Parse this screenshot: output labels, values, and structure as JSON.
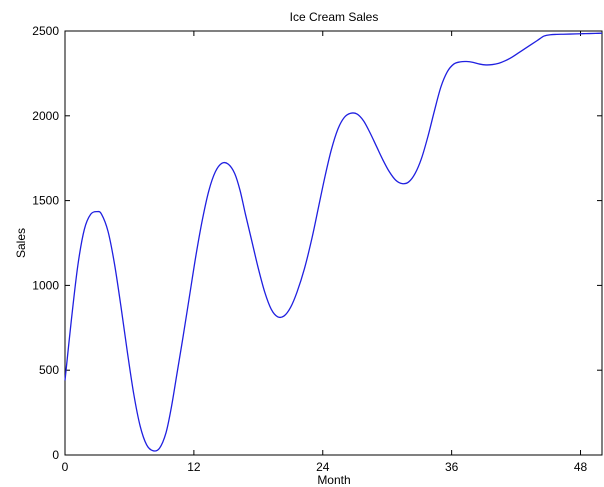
{
  "chart_data": {
    "type": "line",
    "title": "Ice Cream Sales",
    "xlabel": "Month",
    "ylabel": "Sales",
    "xlim": [
      0,
      50
    ],
    "ylim": [
      0,
      2500
    ],
    "xticks": [
      0,
      12,
      24,
      36,
      48
    ],
    "yticks": [
      0,
      500,
      1000,
      1500,
      2000,
      2500
    ],
    "grid": false,
    "series": [
      {
        "color": "#2020e0",
        "x": [
          0,
          0.6,
          1.2,
          1.8,
          2.4,
          3.0,
          3.4,
          4.0,
          4.6,
          5.2,
          5.8,
          6.4,
          7.0,
          7.6,
          8.2,
          8.8,
          9.4,
          9.9,
          10.4,
          11.0,
          11.6,
          12.2,
          12.8,
          13.4,
          14.0,
          14.6,
          15.2,
          15.8,
          16.3,
          16.8,
          17.4,
          18.0,
          18.6,
          19.2,
          19.8,
          20.4,
          21.0,
          21.6,
          22.3,
          23.0,
          23.6,
          24.2,
          24.8,
          25.4,
          26.0,
          26.6,
          27.2,
          27.8,
          28.4,
          29.0,
          29.6,
          30.2,
          30.8,
          31.4,
          32.0,
          32.6,
          33.2,
          33.8,
          34.4,
          35.0,
          35.6,
          36.2,
          36.8,
          37.4,
          38.0,
          38.6,
          39.2,
          39.8,
          40.4,
          41.0,
          41.6,
          42.2,
          42.8,
          43.4,
          44.0,
          44.6,
          45.2,
          45.8,
          46.4,
          47.0,
          47.6,
          48.2,
          48.8,
          49.4,
          50.0
        ],
        "y": [
          440,
          800,
          1120,
          1330,
          1420,
          1435,
          1420,
          1320,
          1130,
          880,
          610,
          360,
          170,
          60,
          25,
          40,
          130,
          280,
          470,
          700,
          940,
          1180,
          1390,
          1560,
          1670,
          1720,
          1715,
          1660,
          1560,
          1420,
          1260,
          1100,
          960,
          860,
          815,
          820,
          870,
          960,
          1100,
          1280,
          1460,
          1640,
          1800,
          1920,
          1990,
          2015,
          2010,
          1970,
          1900,
          1820,
          1740,
          1670,
          1620,
          1600,
          1610,
          1660,
          1750,
          1880,
          2030,
          2170,
          2260,
          2305,
          2318,
          2320,
          2315,
          2305,
          2300,
          2302,
          2310,
          2325,
          2345,
          2370,
          2395,
          2420,
          2445,
          2470,
          2478,
          2480,
          2481,
          2482,
          2483,
          2484,
          2485,
          2486,
          2487
        ]
      }
    ]
  }
}
